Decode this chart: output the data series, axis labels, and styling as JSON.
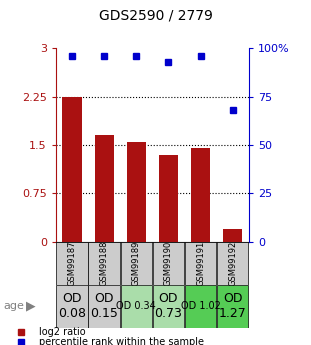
{
  "title": "GDS2590 / 2779",
  "samples": [
    "GSM99187",
    "GSM99188",
    "GSM99189",
    "GSM99190",
    "GSM99191",
    "GSM99192"
  ],
  "log2_ratios": [
    2.25,
    1.65,
    1.55,
    1.35,
    1.45,
    0.2
  ],
  "percentile_ranks": [
    96,
    96,
    96,
    93,
    96,
    68
  ],
  "od_values": [
    "OD\n0.08",
    "OD\n0.15",
    "OD 0.34",
    "OD\n0.73",
    "OD 1.02",
    "OD\n1.27"
  ],
  "od_fontsize": [
    9,
    9,
    7,
    9,
    7,
    9
  ],
  "od_bg_colors": [
    "#cccccc",
    "#cccccc",
    "#aaddaa",
    "#aaddaa",
    "#55cc55",
    "#55cc55"
  ],
  "bar_color": "#aa1111",
  "square_color": "#0000cc",
  "ylim_left": [
    0,
    3
  ],
  "ylim_right": [
    0,
    100
  ],
  "yticks_left": [
    0,
    0.75,
    1.5,
    2.25,
    3
  ],
  "yticks_right": [
    0,
    25,
    50,
    75,
    100
  ],
  "ytick_labels_left": [
    "0",
    "0.75",
    "1.5",
    "2.25",
    "3"
  ],
  "ytick_labels_right": [
    "0",
    "25",
    "50",
    "75",
    "100%"
  ],
  "hlines": [
    0.75,
    1.5,
    2.25
  ],
  "age_label": "age",
  "legend_log2": "log2 ratio",
  "legend_pct": "percentile rank within the sample"
}
